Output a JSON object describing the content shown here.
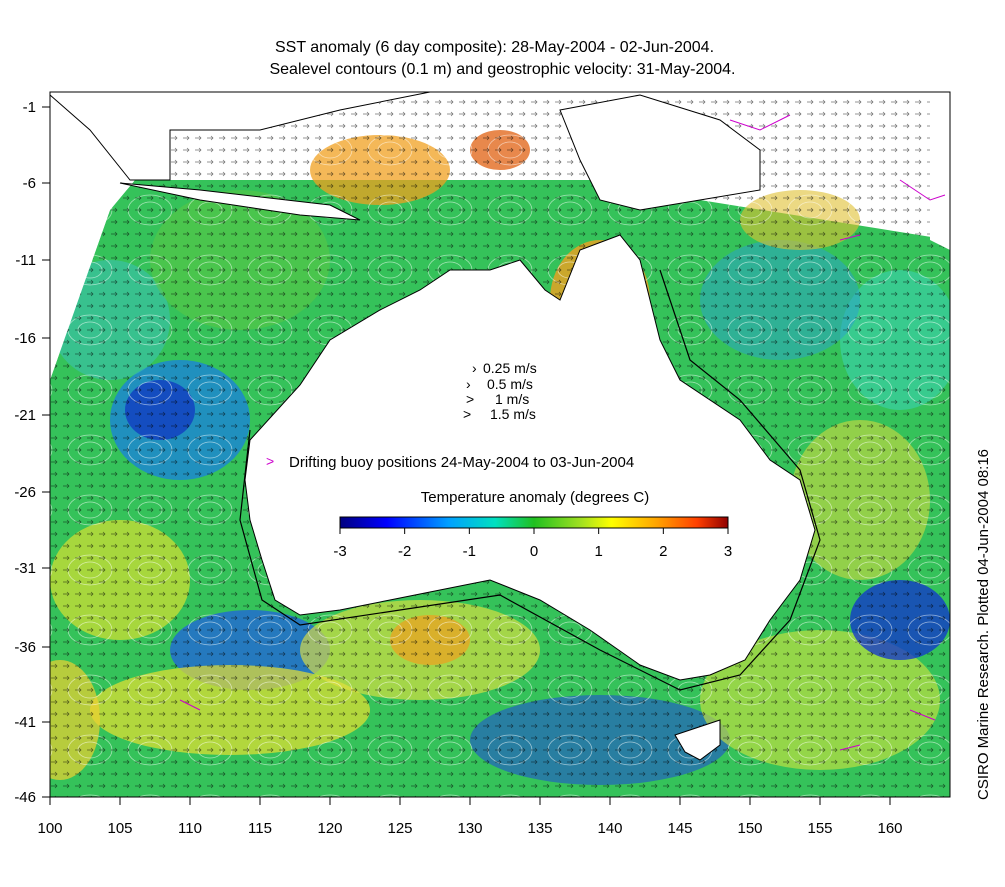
{
  "title": {
    "line1": "SST anomaly (6 day composite): 28-May-2004 - 02-Jun-2004.",
    "line2": "Sealevel contours (0.1 m) and geostrophic velocity: 31-May-2004."
  },
  "credit": "CSIRO Marine Research. Plotted 04-Jun-2004 08:16",
  "axes": {
    "x_ticks": [
      "100",
      "105",
      "110",
      "115",
      "120",
      "125",
      "130",
      "135",
      "140",
      "145",
      "150",
      "155",
      "160"
    ],
    "y_ticks": [
      "-1",
      "-6",
      "-11",
      "-16",
      "-21",
      "-26",
      "-31",
      "-36",
      "-41",
      "-46"
    ]
  },
  "velocity_legend": [
    "0.25 m/s",
    "0.5 m/s",
    "1 m/s",
    "1.5 m/s"
  ],
  "buoy_legend": {
    "symbol": ">",
    "label": "Drifting buoy positions 24-May-2004 to 03-Jun-2004",
    "color": "#cc00cc"
  },
  "colorbar": {
    "title": "Temperature anomaly (degrees C)",
    "ticks": [
      "-3",
      "-2",
      "-1",
      "0",
      "1",
      "2",
      "3"
    ],
    "min": -3,
    "max": 3
  }
}
